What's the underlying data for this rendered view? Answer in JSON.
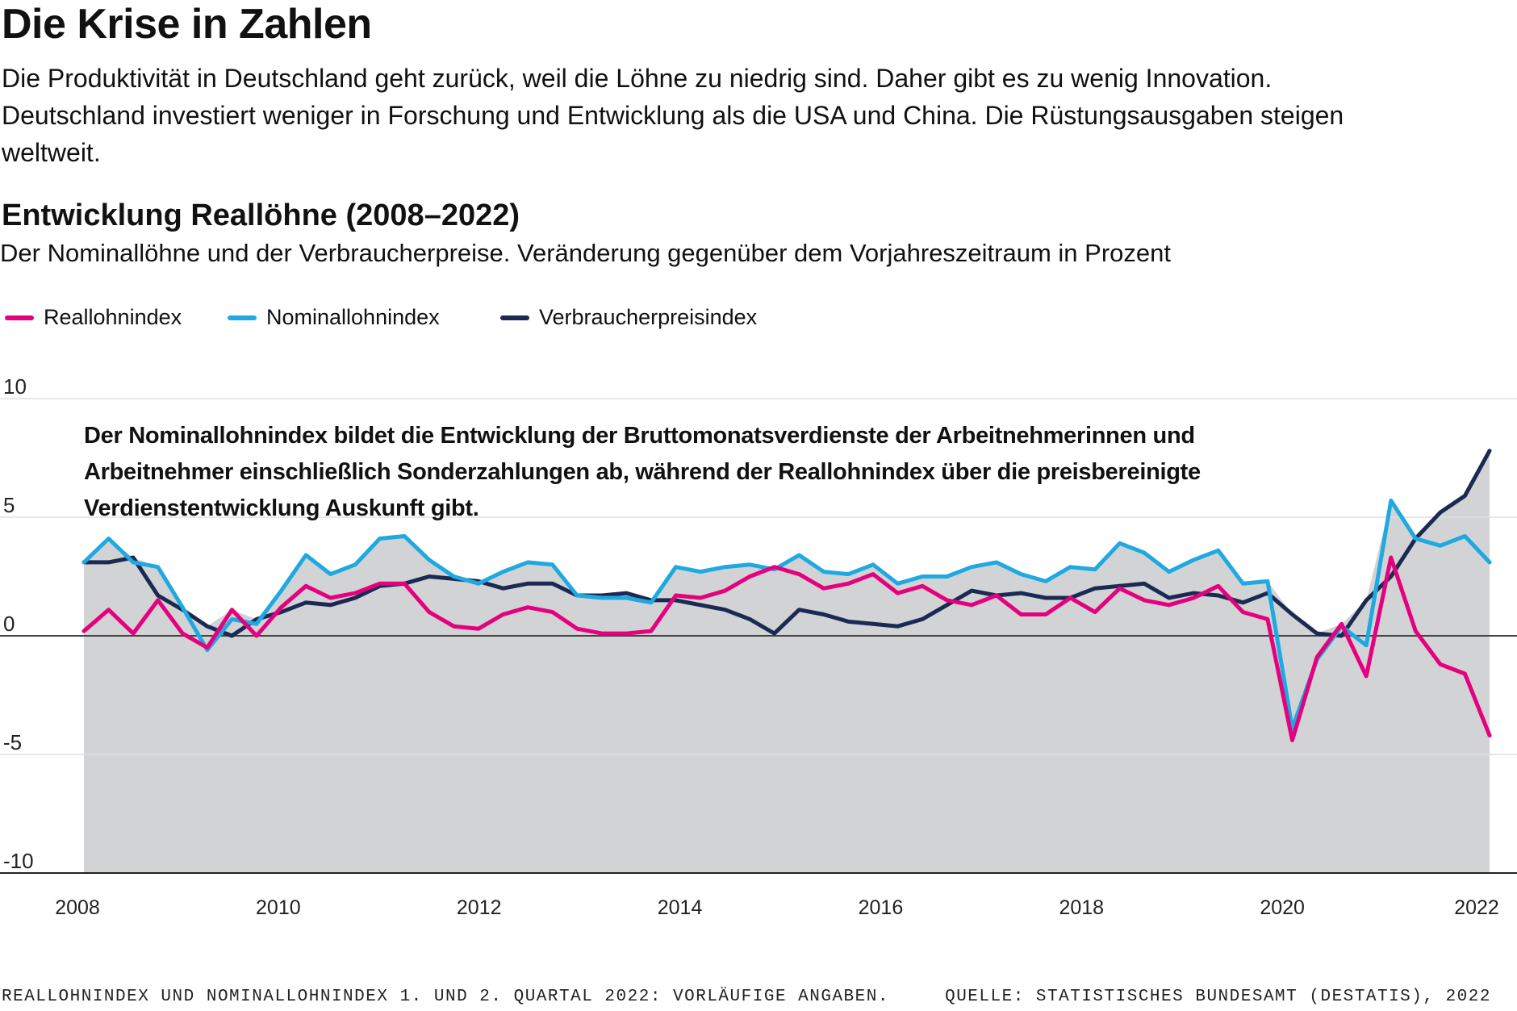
{
  "header": {
    "headline": "Die Krise in Zahlen",
    "intro": "Die Produktivität in Deutschland geht zurück, weil die Löhne zu niedrig sind. Daher gibt es zu wenig Innovation. Deutschland investiert weniger in Forschung und Entwicklung als die USA und China. Die Rüstungsausgaben steigen weltweit."
  },
  "chart_data": {
    "type": "line",
    "title": "Entwicklung Reallöhne (2008–2022)",
    "subtitle": "Der Nominallöhne und der Verbraucherpreise. Veränderung gegenüber dem Vorjahreszeitraum in Prozent",
    "ylim": [
      -10,
      10
    ],
    "yticks": [
      10,
      5,
      0,
      -5,
      -10
    ],
    "xlim": [
      2008,
      2022
    ],
    "xticks": [
      "2008",
      "2010",
      "2012",
      "2014",
      "2016",
      "2018",
      "2020",
      "2022"
    ],
    "grid": true,
    "legend_position": "top-left",
    "area_fill": "#d2d3d5",
    "annotation": "Der Nominallohnindex bildet die Entwicklung der Bruttomonatsverdienste der Arbeitnehmerinnen und Arbeitnehmer einschließlich Sonderzahlungen ab, während der Reallohnindex über die preisbereinigte Verdienstentwicklung Auskunft gibt.",
    "x": [
      "2008-Q1",
      "2008-Q2",
      "2008-Q3",
      "2008-Q4",
      "2009-Q1",
      "2009-Q2",
      "2009-Q3",
      "2009-Q4",
      "2010-Q1",
      "2010-Q2",
      "2010-Q3",
      "2010-Q4",
      "2011-Q1",
      "2011-Q2",
      "2011-Q3",
      "2011-Q4",
      "2012-Q1",
      "2012-Q2",
      "2012-Q3",
      "2012-Q4",
      "2013-Q1",
      "2013-Q2",
      "2013-Q3",
      "2013-Q4",
      "2014-Q1",
      "2014-Q2",
      "2014-Q3",
      "2014-Q4",
      "2015-Q1",
      "2015-Q2",
      "2015-Q3",
      "2015-Q4",
      "2016-Q1",
      "2016-Q2",
      "2016-Q3",
      "2016-Q4",
      "2017-Q1",
      "2017-Q2",
      "2017-Q3",
      "2017-Q4",
      "2018-Q1",
      "2018-Q2",
      "2018-Q3",
      "2018-Q4",
      "2019-Q1",
      "2019-Q2",
      "2019-Q3",
      "2019-Q4",
      "2020-Q1",
      "2020-Q2",
      "2020-Q3",
      "2020-Q4",
      "2021-Q1",
      "2021-Q2",
      "2021-Q3",
      "2021-Q4",
      "2022-Q1",
      "2022-Q2"
    ],
    "series": [
      {
        "name": "Reallohnindex",
        "color": "#e5007d",
        "values": [
          0.2,
          1.1,
          0.1,
          1.5,
          0.1,
          -0.5,
          1.1,
          0.0,
          1.2,
          2.1,
          1.6,
          1.8,
          2.2,
          2.2,
          1.0,
          0.4,
          0.3,
          0.9,
          1.2,
          1.0,
          0.3,
          0.1,
          0.1,
          0.2,
          1.7,
          1.6,
          1.9,
          2.5,
          2.9,
          2.6,
          2.0,
          2.2,
          2.6,
          1.8,
          2.1,
          1.5,
          1.3,
          1.7,
          0.9,
          0.9,
          1.6,
          1.0,
          2.0,
          1.5,
          1.3,
          1.6,
          2.1,
          1.0,
          0.7,
          -4.4,
          -0.9,
          0.5,
          -1.7,
          3.3,
          0.2,
          -1.2,
          -1.6,
          -4.2
        ]
      },
      {
        "name": "Nominallohnindex",
        "color": "#1fa9e1",
        "values": [
          3.1,
          4.1,
          3.1,
          2.9,
          1.2,
          -0.6,
          0.7,
          0.5,
          1.9,
          3.4,
          2.6,
          3.0,
          4.1,
          4.2,
          3.2,
          2.5,
          2.2,
          2.7,
          3.1,
          3.0,
          1.7,
          1.6,
          1.6,
          1.4,
          2.9,
          2.7,
          2.9,
          3.0,
          2.8,
          3.4,
          2.7,
          2.6,
          3.0,
          2.2,
          2.5,
          2.5,
          2.9,
          3.1,
          2.6,
          2.3,
          2.9,
          2.8,
          3.9,
          3.5,
          2.7,
          3.2,
          3.6,
          2.2,
          2.3,
          -3.9,
          -1.0,
          0.4,
          -0.4,
          5.7,
          4.1,
          3.8,
          4.2,
          3.1
        ]
      },
      {
        "name": "Verbraucherpreisindex",
        "color": "#1b2a52",
        "values": [
          3.1,
          3.1,
          3.3,
          1.7,
          1.1,
          0.4,
          0.0,
          0.7,
          1.0,
          1.4,
          1.3,
          1.6,
          2.1,
          2.2,
          2.5,
          2.4,
          2.3,
          2.0,
          2.2,
          2.2,
          1.7,
          1.7,
          1.8,
          1.5,
          1.5,
          1.3,
          1.1,
          0.7,
          0.1,
          1.1,
          0.9,
          0.6,
          0.5,
          0.4,
          0.7,
          1.3,
          1.9,
          1.7,
          1.8,
          1.6,
          1.6,
          2.0,
          2.1,
          2.2,
          1.6,
          1.8,
          1.7,
          1.4,
          1.8,
          0.9,
          0.1,
          0.0,
          1.5,
          2.5,
          4.1,
          5.2,
          5.9,
          7.8
        ]
      }
    ]
  },
  "footer": {
    "footnote": "REALLOHNINDEX UND NOMINALLOHNINDEX 1. UND 2. QUARTAL 2022: VORLÄUFIGE ANGABEN.",
    "source": "QUELLE: STATISTISCHES BUNDESAMT (DESTATIS), 2022"
  }
}
